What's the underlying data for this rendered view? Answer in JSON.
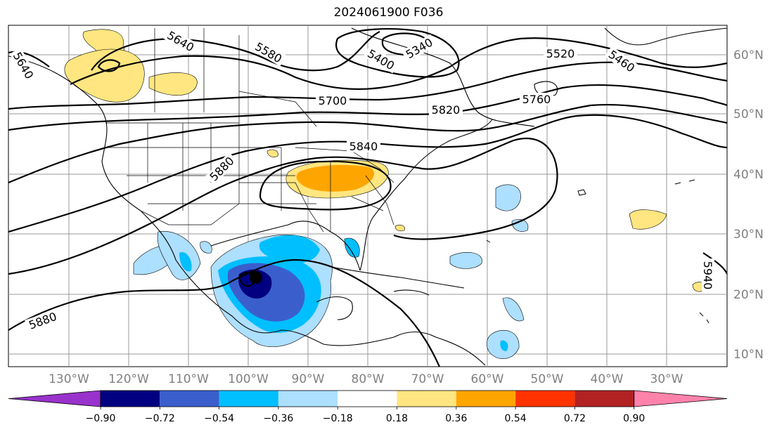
{
  "title": "2024061900 F036",
  "map": {
    "lon_labels": [
      "130°W",
      "120°W",
      "110°W",
      "100°W",
      "90°W",
      "80°W",
      "70°W",
      "60°W",
      "50°W",
      "40°W",
      "30°W"
    ],
    "lat_labels": [
      "60°N",
      "50°N",
      "40°N",
      "30°N",
      "20°N",
      "10°N"
    ],
    "contour_labels": [
      "5640",
      "5580",
      "5400",
      "5340",
      "5520",
      "5460",
      "5700",
      "5820",
      "5760",
      "5840",
      "5880",
      "5880",
      "5940",
      "5640"
    ],
    "marker": "storm-center-dot"
  },
  "colorbar": {
    "tick_labels": [
      "−0.90",
      "−0.72",
      "−0.54",
      "−0.36",
      "−0.18",
      "0.18",
      "0.36",
      "0.54",
      "0.72",
      "0.90"
    ],
    "colors": [
      "#9932CC",
      "#000080",
      "#3A5FCD",
      "#00BFFF",
      "#ADDFFF",
      "#FFFFFF",
      "#FFE680",
      "#FFA500",
      "#FF3300",
      "#B22222",
      "#FF82AB"
    ]
  }
}
